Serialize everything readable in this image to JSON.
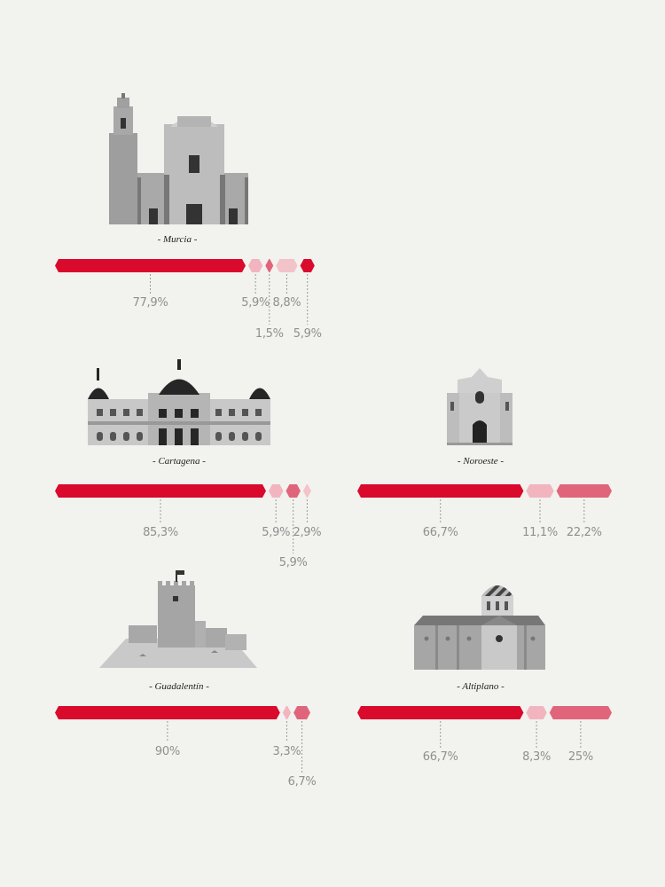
{
  "colors": [
    "#d90a2c",
    "#f2b5bf",
    "#e0657a",
    "#f2c3c9"
  ],
  "chart_data": [
    {
      "type": "bar",
      "title": "- Murcia -",
      "icon": "murcia-cathedral-icon",
      "segments": [
        {
          "value": 77.9,
          "label": "77,9%"
        },
        {
          "value": 5.9,
          "label": "5,9%"
        },
        {
          "value": 1.5,
          "label": "1,5%"
        },
        {
          "value": 8.8,
          "label": "8,8%"
        },
        {
          "value": 5.9,
          "label": "5,9%"
        }
      ]
    },
    {
      "type": "bar",
      "title": "- Cartagena -",
      "icon": "cartagena-town-hall-icon",
      "segments": [
        {
          "value": 85.3,
          "label": "85,3%"
        },
        {
          "value": 5.9,
          "label": "5,9%"
        },
        {
          "value": 5.9,
          "label": "5,9%"
        },
        {
          "value": 2.9,
          "label": "2,9%"
        }
      ]
    },
    {
      "type": "bar",
      "title": "- Noroeste -",
      "icon": "noroeste-church-icon",
      "segments": [
        {
          "value": 66.7,
          "label": "66,7%"
        },
        {
          "value": 11.1,
          "label": "11,1%"
        },
        {
          "value": 22.2,
          "label": "22,2%"
        }
      ]
    },
    {
      "type": "bar",
      "title": "- Guadalentín -",
      "icon": "guadalentin-castle-icon",
      "segments": [
        {
          "value": 90,
          "label": "90%"
        },
        {
          "value": 3.3,
          "label": "3,3%"
        },
        {
          "value": 6.7,
          "label": "6,7%"
        }
      ]
    },
    {
      "type": "bar",
      "title": "- Altiplano -",
      "icon": "altiplano-church-icon",
      "segments": [
        {
          "value": 66.7,
          "label": "66,7%"
        },
        {
          "value": 8.3,
          "label": "8,3%"
        },
        {
          "value": 25,
          "label": "25%"
        }
      ]
    }
  ]
}
